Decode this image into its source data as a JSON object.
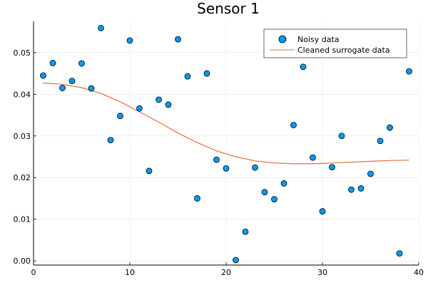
{
  "chart_data": {
    "type": "scatter",
    "title": "Sensor 1",
    "xlabel": "",
    "ylabel": "",
    "xlim": [
      0,
      40
    ],
    "ylim": [
      -0.001,
      0.0575
    ],
    "xticks": [
      0,
      10,
      20,
      30,
      40
    ],
    "xtick_labels": [
      "0",
      "10",
      "20",
      "30",
      "40"
    ],
    "yticks": [
      0.0,
      0.01,
      0.02,
      0.03,
      0.04,
      0.05
    ],
    "ytick_labels": [
      "0.00",
      "0.01",
      "0.02",
      "0.03",
      "0.04",
      "0.05"
    ],
    "grid": true,
    "legend_position": "top-right",
    "series": [
      {
        "name": "Noisy data",
        "type": "scatter",
        "color": "#009AFA",
        "x": [
          1,
          2,
          3,
          4,
          5,
          6,
          7,
          8,
          9,
          10,
          11,
          12,
          13,
          14,
          15,
          16,
          17,
          18,
          19,
          20,
          21,
          22,
          23,
          24,
          25,
          26,
          27,
          28,
          29,
          30,
          31,
          32,
          33,
          34,
          35,
          36,
          37,
          38,
          39
        ],
        "y": [
          0.0445,
          0.0475,
          0.0415,
          0.0432,
          0.0474,
          0.0414,
          0.0559,
          0.029,
          0.0348,
          0.0529,
          0.0366,
          0.0216,
          0.0387,
          0.0375,
          0.0532,
          0.0443,
          0.015,
          0.045,
          0.0243,
          0.0222,
          0.0002,
          0.007,
          0.0224,
          0.0165,
          0.0148,
          0.0186,
          0.0326,
          0.0466,
          0.0248,
          0.0119,
          0.0225,
          0.03,
          0.0171,
          0.0174,
          0.0209,
          0.0288,
          0.032,
          0.0018,
          0.0455
        ]
      },
      {
        "name": "Cleaned surrogate data",
        "type": "line",
        "color": "#E26F46",
        "x": [
          1,
          3,
          5,
          7,
          9,
          11,
          13,
          15,
          17,
          19,
          21,
          23,
          25,
          27,
          29,
          31,
          33,
          35,
          37,
          39
        ],
        "y": [
          0.0427,
          0.0424,
          0.0416,
          0.0402,
          0.0382,
          0.0358,
          0.0333,
          0.0307,
          0.0284,
          0.0264,
          0.025,
          0.024,
          0.0235,
          0.0233,
          0.0233,
          0.0235,
          0.0237,
          0.0239,
          0.0241,
          0.0242
        ]
      }
    ]
  }
}
